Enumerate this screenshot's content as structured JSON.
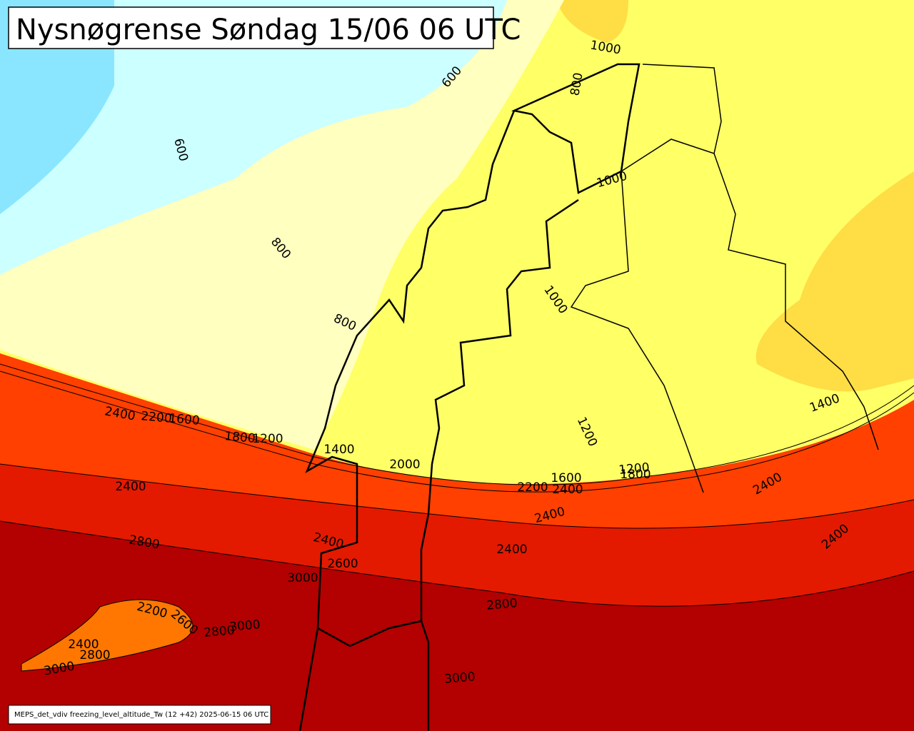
{
  "title": "Nysnøgrense Søndag 15/06 06 UTC",
  "footer": "MEPS_det_vdiv freezing_level_altitude_Tw (12 +42) 2025-06-15 06 UTC",
  "contour_labels": [
    600,
    600,
    800,
    800,
    1000,
    800,
    1000,
    1000,
    1200,
    1200,
    1400,
    1400,
    2400,
    2200,
    1600,
    1800,
    1200,
    2000,
    2400,
    1600,
    2200,
    2400,
    1800,
    2400,
    2400,
    2400,
    2400,
    2400,
    2800,
    2600,
    3000,
    2800,
    2200,
    2600,
    2800,
    3000,
    2400,
    2800,
    3000,
    3000
  ]
}
